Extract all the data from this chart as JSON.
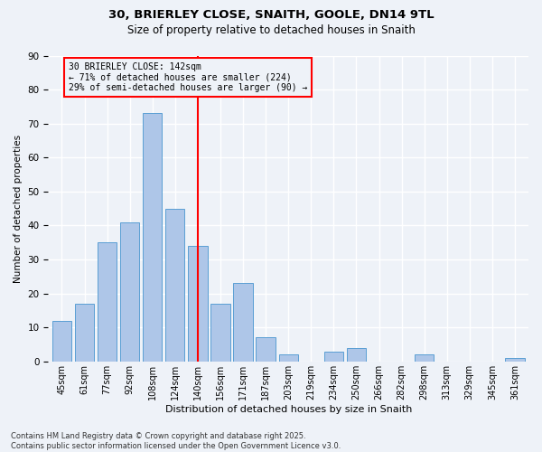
{
  "title1": "30, BRIERLEY CLOSE, SNAITH, GOOLE, DN14 9TL",
  "title2": "Size of property relative to detached houses in Snaith",
  "xlabel": "Distribution of detached houses by size in Snaith",
  "ylabel": "Number of detached properties",
  "bar_labels": [
    "45sqm",
    "61sqm",
    "77sqm",
    "92sqm",
    "108sqm",
    "124sqm",
    "140sqm",
    "156sqm",
    "171sqm",
    "187sqm",
    "203sqm",
    "219sqm",
    "234sqm",
    "250sqm",
    "266sqm",
    "282sqm",
    "298sqm",
    "313sqm",
    "329sqm",
    "345sqm",
    "361sqm"
  ],
  "bar_values": [
    12,
    17,
    35,
    41,
    73,
    45,
    34,
    17,
    23,
    7,
    2,
    0,
    3,
    4,
    0,
    0,
    2,
    0,
    0,
    0,
    1
  ],
  "bar_color": "#aec6e8",
  "bar_edge_color": "#5a9fd4",
  "vline_x": 6,
  "vline_color": "red",
  "annotation_text": "30 BRIERLEY CLOSE: 142sqm\n← 71% of detached houses are smaller (224)\n29% of semi-detached houses are larger (90) →",
  "annotation_box_color": "red",
  "ylim": [
    0,
    90
  ],
  "yticks": [
    0,
    10,
    20,
    30,
    40,
    50,
    60,
    70,
    80,
    90
  ],
  "background_color": "#eef2f8",
  "grid_color": "#ffffff",
  "footer": "Contains HM Land Registry data © Crown copyright and database right 2025.\nContains public sector information licensed under the Open Government Licence v3.0."
}
